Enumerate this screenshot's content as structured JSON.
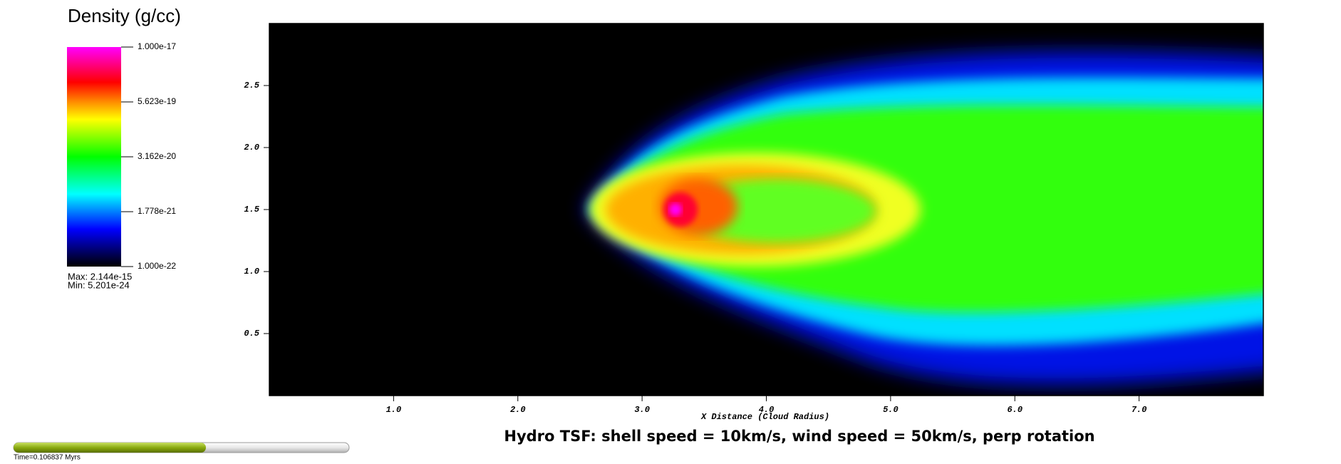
{
  "chart_data": {
    "type": "pseudocolor",
    "title": "Hydro TSF: shell speed = 10km/s, wind speed = 50km/s, perp rotation",
    "colorbar_title": "Density (g/cc)",
    "xlabel": "X Distance (Cloud Radius)",
    "xlim": [
      0,
      8
    ],
    "ylim": [
      0,
      3
    ],
    "xticks": [
      {
        "value": 1,
        "label": "1.0"
      },
      {
        "value": 2,
        "label": "2.0"
      },
      {
        "value": 3,
        "label": "3.0"
      },
      {
        "value": 4,
        "label": "4.0"
      },
      {
        "value": 5,
        "label": "5.0"
      },
      {
        "value": 6,
        "label": "6.0"
      },
      {
        "value": 7,
        "label": "7.0"
      }
    ],
    "yticks": [
      {
        "value": 0.5,
        "label": "0.5"
      },
      {
        "value": 1,
        "label": "1.0"
      },
      {
        "value": 1.5,
        "label": "1.5"
      },
      {
        "value": 2,
        "label": "2.0"
      },
      {
        "value": 2.5,
        "label": "2.5"
      }
    ],
    "clim": [
      1e-22,
      1e-17
    ],
    "color_scale": "log",
    "cticks": [
      {
        "value": 1e-17,
        "label": "1.000e-17"
      },
      {
        "value": 5.623e-19,
        "label": "5.623e-19"
      },
      {
        "value": 3.162e-20,
        "label": "3.162e-20"
      },
      {
        "value": 1.778e-21,
        "label": "1.778e-21"
      },
      {
        "value": 1e-22,
        "label": "1.000e-22"
      }
    ],
    "stats": [
      "Max:  2.144e-15",
      "Min:  5.201e-24"
    ],
    "time_label": "Time=0.106837 Myrs"
  }
}
